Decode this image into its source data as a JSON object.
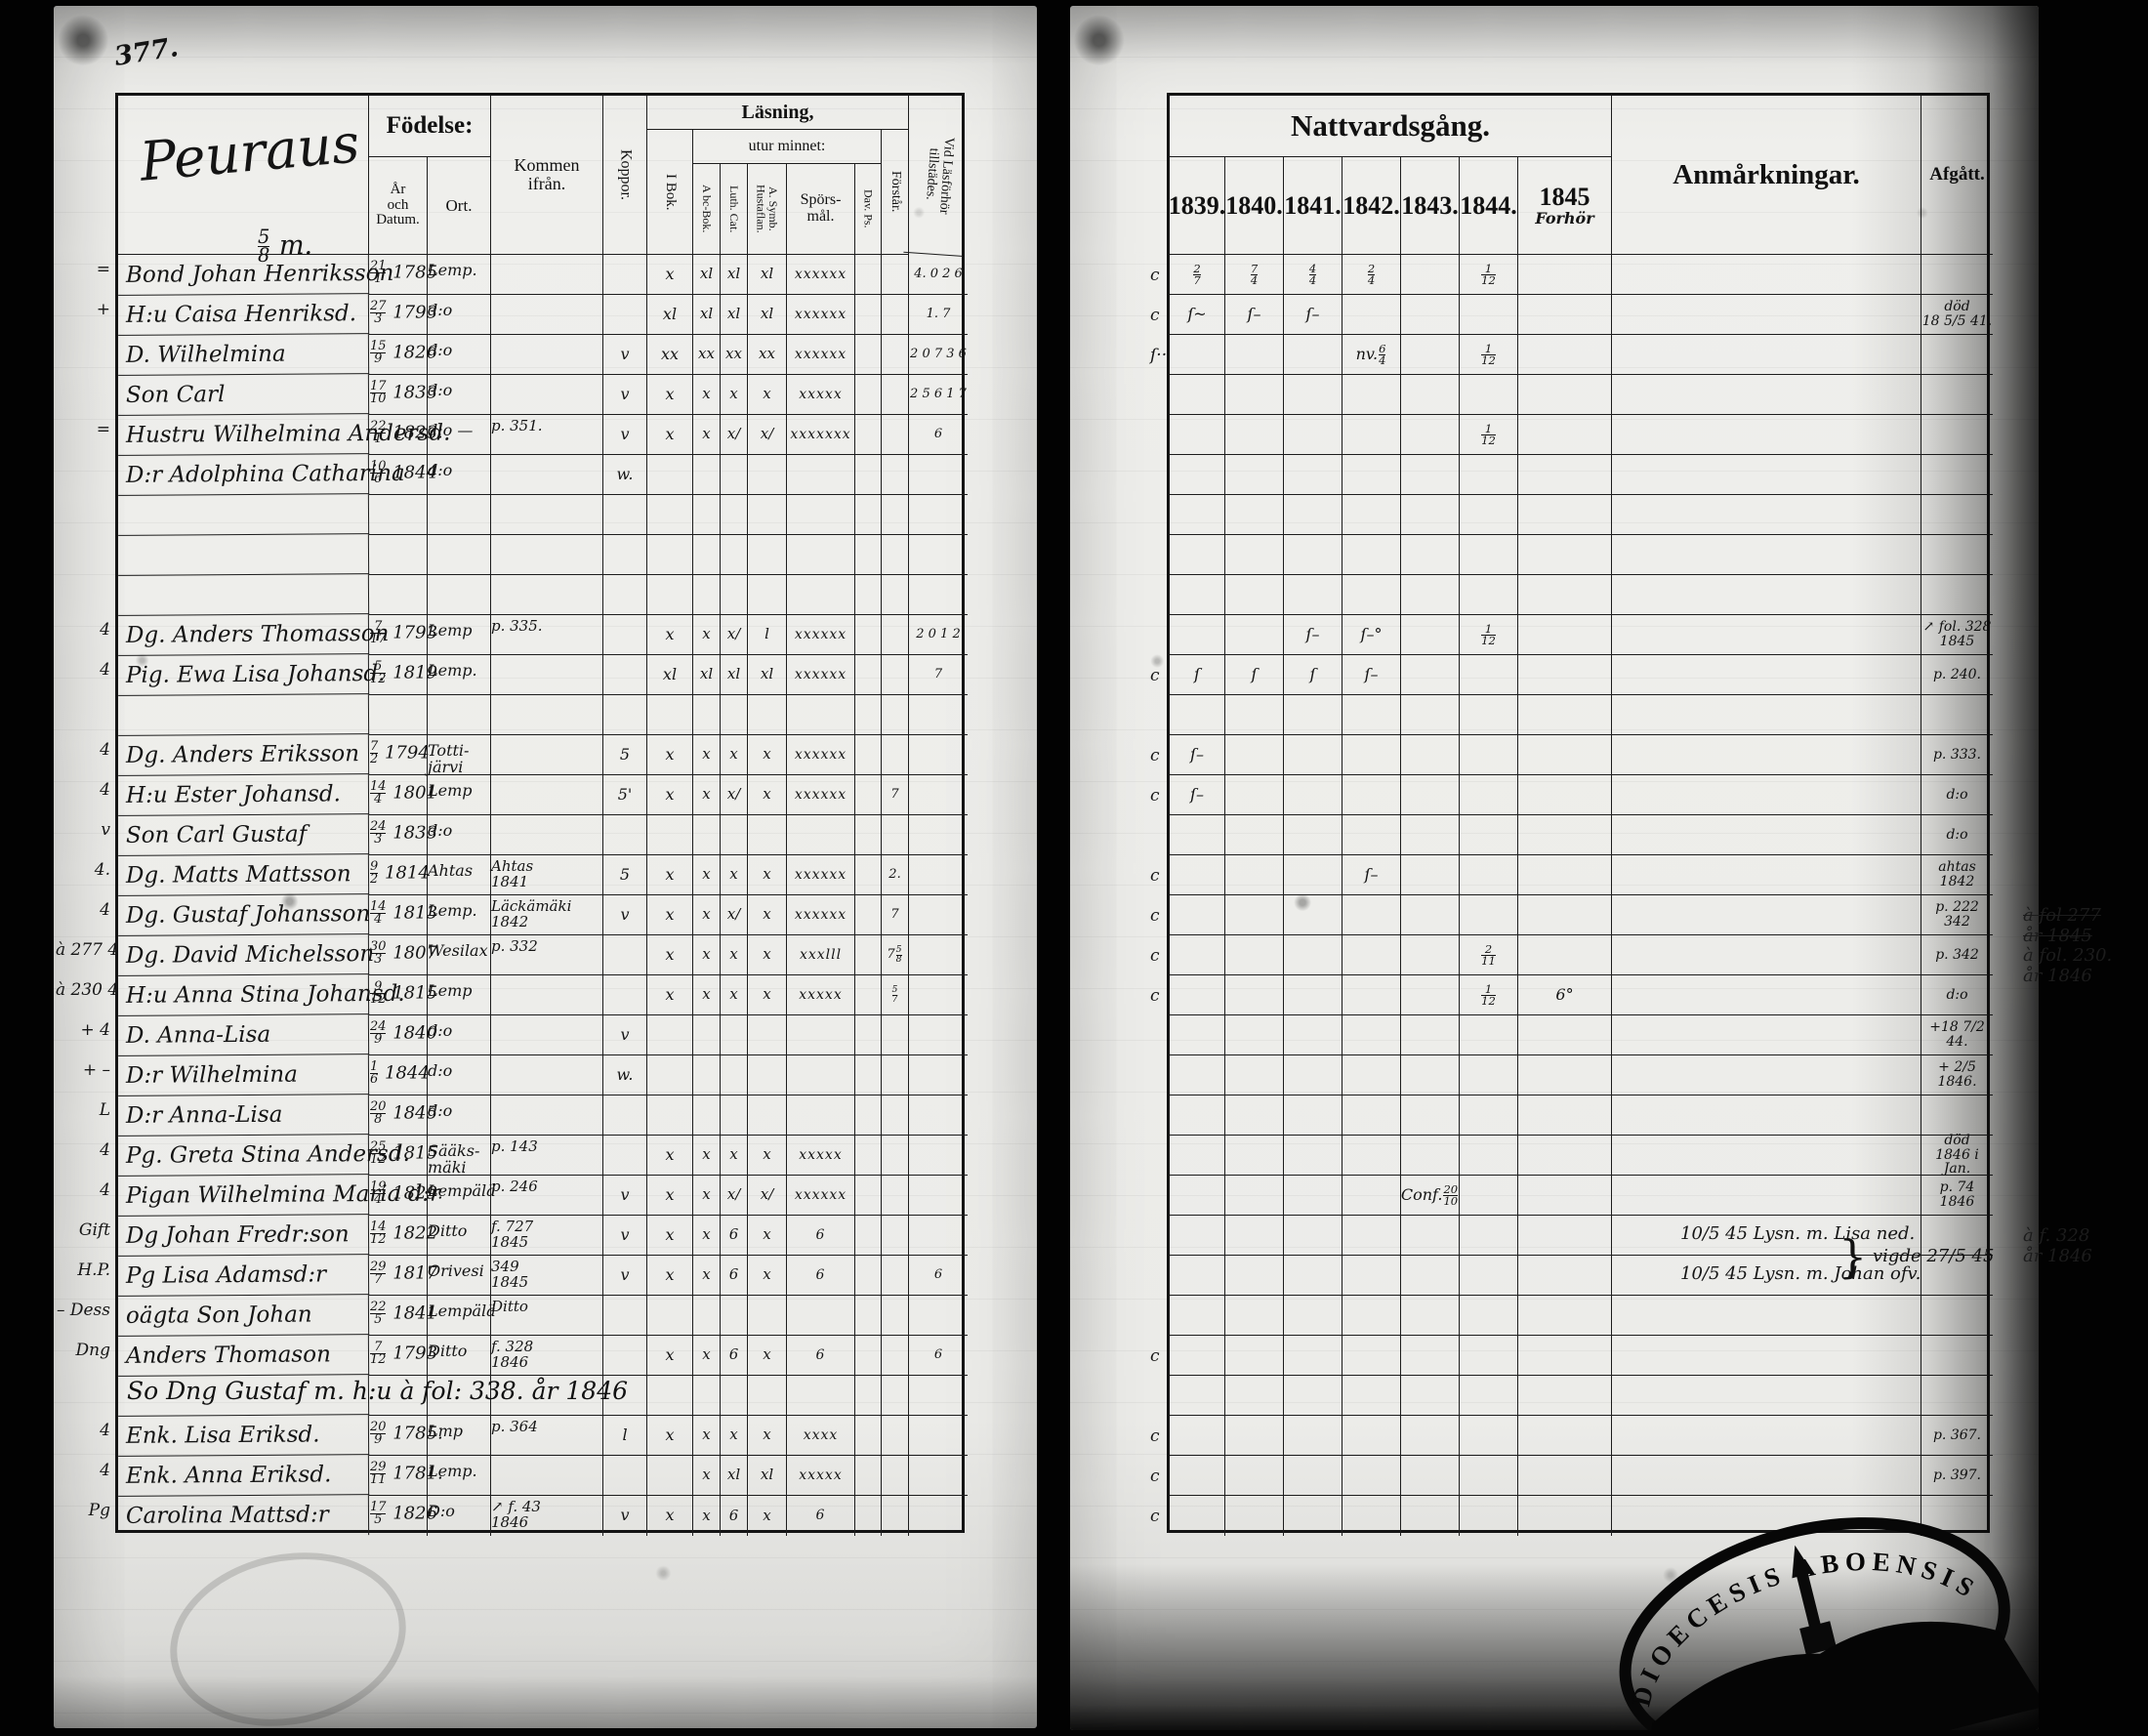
{
  "page_number": "377.",
  "left_page": {
    "title": "Peuraus",
    "subtitle": "5/8 m.",
    "header": {
      "fodelse": "Födelse:",
      "ar_och_datum": "År\noch\nDatum.",
      "ort": "Ort.",
      "kommen": "Kommen\nifrån.",
      "koppor": "Koppor.",
      "lasning": "Läsning,",
      "i_bok": "I Bok.",
      "utur_minnet": "utur minnet:",
      "abc_bok": "A bc-Bok.",
      "luth_cat": "Luth. Cat.",
      "symb_hustaflan": "A. Symb.\nHustaflan.",
      "sporsmal": "Spörs-\nmål.",
      "dav_ps": "Dav. Ps.",
      "forstar": "Förstår.",
      "vid_lasforhor": "Vid Läsförhör\ntillstädes."
    }
  },
  "right_page": {
    "header": {
      "nattvardsgang": "Nattvardsgång.",
      "years": [
        "1839.",
        "1840.",
        "1841.",
        "1842.",
        "1843.",
        "1844.",
        "1845"
      ],
      "years_note": "Forhör",
      "anmarkningar": "Anmårkningar.",
      "afgatt": "Afgått."
    },
    "stamp": "DIOECESIS ABOENSIS"
  },
  "ink": "#141414",
  "rows": [
    {
      "m": "=",
      "name": "Bond Johan Henriksson",
      "date": "21/1 1785",
      "ort": "Lemp.",
      "ib": "x",
      "ab": "xl",
      "lu": "xl",
      "sy": "xl",
      "sp": "xxxxxx",
      "vid": "4. 0 2  6",
      "c": "c",
      "y": [
        "2/7",
        "7/4",
        "4/4",
        "2/4",
        "",
        "1/12",
        ""
      ]
    },
    {
      "m": "+",
      "name": "H:u Caisa Henriksd.",
      "date": "27/3 1793",
      "ort": "d:o",
      "ib": "xl",
      "ab": "xl",
      "lu": "xl",
      "sy": "xl",
      "sp": "xxxxxx",
      "vid": "1. 7",
      "c": "c",
      "y": [
        "ſ~",
        "ſ–",
        "ſ–",
        "",
        "",
        "",
        ""
      ],
      "afg": "död\n18 5/5 41."
    },
    {
      "name": "D. Wilhelmina",
      "date": "15/9 1826",
      "ort": "d:o",
      "kop": "v",
      "ib": "xx",
      "ab": "xx",
      "lu": "xx",
      "sy": "xx",
      "sp": "xxxxxx",
      "vid": "2 0 7  3 6",
      "c": "ſ··",
      "y": [
        "",
        "",
        "",
        "nv. 6/4",
        "",
        "1/12",
        ""
      ]
    },
    {
      "name": "Son Carl",
      "date": "17/10 1833",
      "ort": "d:o",
      "kop": "v",
      "ib": "x",
      "ab": "x",
      "lu": "x",
      "sy": "x",
      "sp": "xxxxx",
      "vid": "2 5 6  1 7"
    },
    {
      "m": "=",
      "name": "Hustru Wilhelmina Andersd.",
      "date": "22/1 1823.",
      "ort": "d:o —",
      "from": "p. 351.",
      "kop": "v",
      "ib": "x",
      "ab": "x",
      "lu": "x/",
      "sy": "x/",
      "sp": "xxxxxxx",
      "vid": "6",
      "y": [
        "",
        "",
        "",
        "",
        "",
        "1/12",
        ""
      ]
    },
    {
      "name": "D:r Adolphina Catharina",
      "date": "10/6 1844",
      "ort": "d:o",
      "kop": "w."
    },
    {},
    {},
    {},
    {
      "m": "4",
      "name": "Dg. Anders Thomasson",
      "date": "7/17 1793",
      "ort": "Lemp",
      "from": "p. 335.",
      "ib": "x",
      "ab": "x",
      "lu": "x/",
      "sy": "l",
      "sp": "xxxxxx",
      "vid": "2 0 1 2",
      "y": [
        "",
        "",
        "ſ–",
        "ſ–°",
        "",
        "1/12",
        ""
      ],
      "afg": "↗ fol. 328\n1845"
    },
    {
      "m": "4",
      "name": "Pig. Ewa Lisa Johansd.",
      "date": "5/12 1819",
      "ort": "Lemp.",
      "ib": "xl",
      "ab": "xl",
      "lu": "xl",
      "sy": "xl",
      "sp": "xxxxxx",
      "vid": "7",
      "c": "c",
      "y": [
        "ſ",
        "ſ",
        "ſ",
        "ſ–",
        "",
        "",
        ""
      ],
      "afg": "p. 240."
    },
    {},
    {
      "m": "4",
      "name": "Dg. Anders Eriksson",
      "date": "7/2 1794",
      "ort": "Totti-\njärvi",
      "kop": "5",
      "ib": "x",
      "ab": "x",
      "lu": "x",
      "sy": "x",
      "sp": "xxxxxx",
      "c": "c",
      "y": [
        "ſ–",
        "",
        "",
        "",
        "",
        "",
        ""
      ],
      "afg": "p. 333."
    },
    {
      "m": "4",
      "name": "H:u Ester Johansd.",
      "date": "14/4 1801",
      "ort": "Lemp",
      "kop": "5'",
      "ib": "x",
      "ab": "x",
      "lu": "x/",
      "sy": "x",
      "sp": "xxxxxx",
      "fo": "7",
      "c": "c",
      "y": [
        "ſ–",
        "",
        "",
        "",
        "",
        "",
        ""
      ],
      "afg": "d:o"
    },
    {
      "m": "v",
      "name": "Son Carl Gustaf",
      "date": "24/3 1833",
      "ort": "d:o",
      "afg": "d:o"
    },
    {
      "m": "4.",
      "name": "Dg. Matts Mattsson",
      "date": "9/2 1814",
      "ort": "Ahtas",
      "from": "Ahtas\n1841",
      "kop": "5",
      "ib": "x",
      "ab": "x",
      "lu": "x",
      "sy": "x",
      "sp": "xxxxxx",
      "fo": "2.",
      "c": "c",
      "y": [
        "",
        "",
        "",
        "ſ–",
        "",
        "",
        ""
      ],
      "afg": "ahtas\n1842"
    },
    {
      "m": "4",
      "name": "Dg. Gustaf Johansson",
      "date": "14/4 1813",
      "ort": "Lemp.",
      "from": "Läckämäki\n1842",
      "kop": "v",
      "ib": "x",
      "ab": "x",
      "lu": "x/",
      "sy": "x",
      "sp": "xxxxxx",
      "fo": "7",
      "c": "c",
      "afg": "p. 222\n342",
      "rm": "à fol 277\når 1845",
      "rms": true
    },
    {
      "m": "à 277 4",
      "name": "Dg. David Michelsson",
      "date": "30/3 1807",
      "ort": "Wesilax",
      "from": "p. 332",
      "ib": "x",
      "ab": "x",
      "lu": "x",
      "sy": "x",
      "sp": "xxxlll",
      "fo": "7 5/8",
      "c": "c",
      "y": [
        "",
        "",
        "",
        "",
        "",
        "2/11",
        ""
      ],
      "afg": "p. 342",
      "rm": "à fol. 230.\når 1846"
    },
    {
      "m": "à 230 4",
      "name": "H:u Anna Stina Johansd.",
      "date": "9/12 1815",
      "ort": "Lemp",
      "ib": "x",
      "ab": "x",
      "lu": "x",
      "sy": "x",
      "sp": "xxxxx",
      "fo": "5/7",
      "c": "c",
      "y": [
        "",
        "",
        "",
        "",
        "",
        "1/12",
        "6°"
      ],
      "afg": "d:o"
    },
    {
      "m": "+ 4",
      "name": "D. Anna-Lisa",
      "date": "24/9 1840",
      "ort": "d:o",
      "kop": "v",
      "afg": "+18 7/2 44."
    },
    {
      "m": "+ –",
      "name": "D:r Wilhelmina",
      "date": "1/6 1844",
      "ort": "d:o",
      "kop": "w.",
      "afg": "+ 2/5 1846."
    },
    {
      "m": "L",
      "name": "D:r Anna-Lisa",
      "date": "20/8 1845",
      "ort": "d:o"
    },
    {
      "m": "4",
      "name": "Pg. Greta Stina Andersd.",
      "date": "25/12 1815",
      "ort": "Sääks-\nmäki",
      "from": "p. 143",
      "ib": "x",
      "ab": "x",
      "lu": "x",
      "sy": "x",
      "sp": "xxxxx",
      "afg": "död\n1846 i Jan."
    },
    {
      "m": "4",
      "name": "Pigan Wilhelmina Maria d:r",
      "date": "19/4 1829.",
      "ort": "Lempälä",
      "from": "p. 246",
      "kop": "v",
      "ib": "x",
      "ab": "x",
      "lu": "x/",
      "sy": "x/",
      "sp": "xxxxxx",
      "y": [
        "",
        "",
        "",
        "",
        "Conf. 20/10",
        "",
        ""
      ],
      "afg": "p. 74\n1846"
    },
    {
      "m": "Gift",
      "name": "Dg Johan Fredr:son",
      "date": "14/12 1822",
      "ort": "Ditto",
      "from": "f. 727\n1845",
      "kop": "v",
      "ib": "x",
      "ab": "x",
      "lu": "6",
      "sy": "x",
      "sp": "6",
      "anm": "10/5 45 Lysn. m. Lisa ned.",
      "an2": "vigde 27/5 45",
      "rm": "à f. 328\når 1846"
    },
    {
      "m": "H.P.",
      "name": "Pg Lisa Adamsd:r",
      "date": "29/7 1817",
      "ort": "Orivesi",
      "from": "349\n1845",
      "kop": "v",
      "ib": "x",
      "ab": "x",
      "lu": "6",
      "sy": "x",
      "sp": "6",
      "vid": "6",
      "anm": "10/5 45 Lysn. m. Johan ofv."
    },
    {
      "m": "– Dess",
      "name": "oägta Son Johan",
      "date": "22/5 1841",
      "ort": "Lempälä",
      "from": "Ditto"
    },
    {
      "m": "Dng",
      "name": "Anders Thomason",
      "date": "7/12 1793",
      "ort": "Ditto",
      "from": "f. 328\n1846",
      "ib": "x",
      "ab": "x",
      "lu": "6",
      "sy": "x",
      "sp": "6",
      "vid": "6",
      "c": "c"
    },
    {
      "span": "So Dng Gustaf m. h:u à fol: 338. år 1846"
    },
    {
      "m": "4",
      "name": "Enk. Lisa Eriksd.",
      "date": "20/9 1785.",
      "ort": "Lmp",
      "from": "p. 364",
      "kop": "l",
      "ib": "x",
      "ab": "x",
      "lu": "x",
      "sy": "x",
      "sp": "xxxx",
      "c": "c",
      "afg": "p. 367."
    },
    {
      "m": "4",
      "name": "Enk. Anna Eriksd.",
      "date": "29/11 1781.",
      "ort": "Lemp.",
      "ab": "x",
      "lu": "xl",
      "sy": "xl",
      "sp": "xxxxx",
      "c": "c",
      "afg": "p. 397."
    },
    {
      "m": "Pg",
      "name": "Carolina Mattsd:r",
      "date": "17/5 1826",
      "ort": "D:o",
      "from": "↗ f. 43\n1846",
      "kop": "v",
      "ib": "x",
      "ab": "x",
      "lu": "6",
      "sy": "x",
      "sp": "6",
      "c": "c"
    }
  ]
}
